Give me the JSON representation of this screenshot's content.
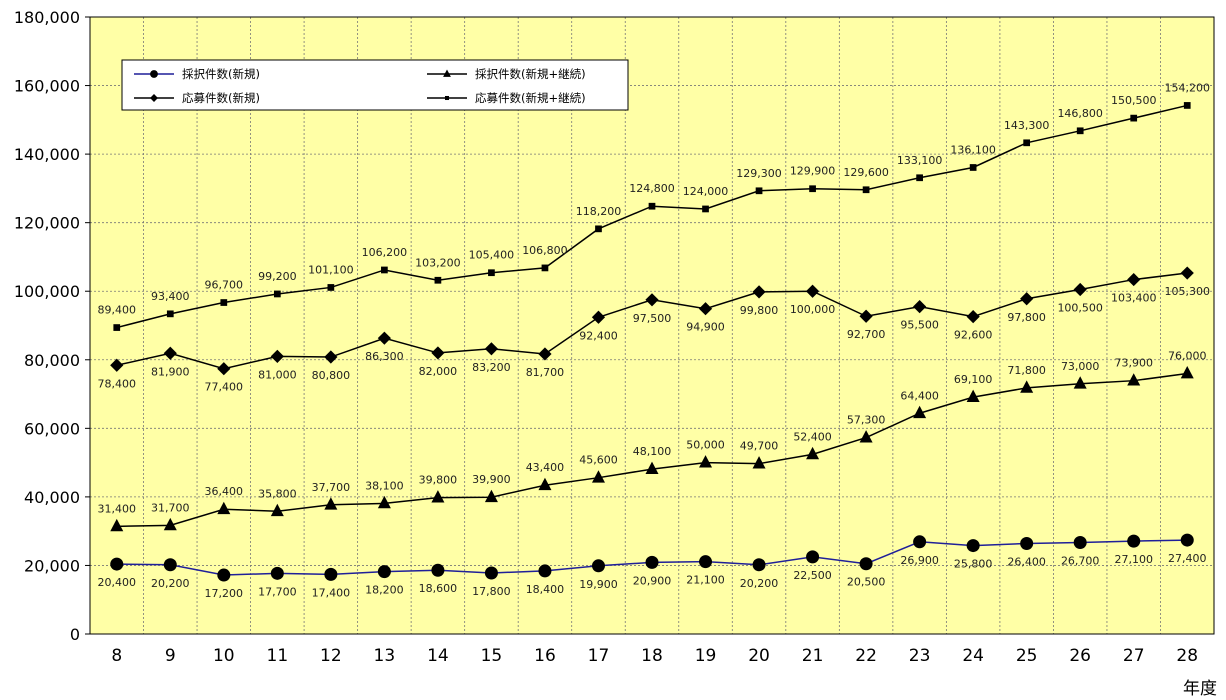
{
  "chart_data": {
    "type": "line",
    "x_unit_label": "年度",
    "categories": [
      "8",
      "9",
      "10",
      "11",
      "12",
      "13",
      "14",
      "15",
      "16",
      "17",
      "18",
      "19",
      "20",
      "21",
      "22",
      "23",
      "24",
      "25",
      "26",
      "27",
      "28"
    ],
    "ylim": [
      0,
      180000
    ],
    "y_ticks": [
      0,
      20000,
      40000,
      60000,
      80000,
      100000,
      120000,
      140000,
      160000,
      180000
    ],
    "y_tick_labels": [
      "0",
      "20,000",
      "40,000",
      "60,000",
      "80,000",
      "100,000",
      "120,000",
      "140,000",
      "160,000",
      "180,000"
    ],
    "grid": true,
    "plot_background": "#FFFFA6",
    "series": [
      {
        "name": "採択件数(新規)",
        "marker": "circle",
        "line_color": "#1f1f99",
        "label_position": "below",
        "values": [
          20400,
          20200,
          17200,
          17700,
          17400,
          18200,
          18600,
          17800,
          18400,
          19900,
          20900,
          21100,
          20200,
          22500,
          20500,
          26900,
          25800,
          26400,
          26700,
          27100,
          27400
        ],
        "labels": [
          "20,400",
          "20,200",
          "17,200",
          "17,700",
          "17,400",
          "18,200",
          "18,600",
          "17,800",
          "18,400",
          "19,900",
          "20,900",
          "21,100",
          "20,200",
          "22,500",
          "20,500",
          "26,900",
          "25,800",
          "26,400",
          "26,700",
          "27,100",
          "27,400"
        ]
      },
      {
        "name": "採択件数(新規+継続)",
        "marker": "triangle",
        "line_color": "#000000",
        "label_position": "above",
        "values": [
          31400,
          31700,
          36400,
          35800,
          37700,
          38100,
          39800,
          39900,
          43400,
          45600,
          48100,
          50000,
          49700,
          52400,
          57300,
          64400,
          69100,
          71800,
          73000,
          73900,
          76000
        ],
        "labels": [
          "31,400",
          "31,700",
          "36,400",
          "35,800",
          "37,700",
          "38,100",
          "39,800",
          "39,900",
          "43,400",
          "45,600",
          "48,100",
          "50,000",
          "49,700",
          "52,400",
          "57,300",
          "64,400",
          "69,100",
          "71,800",
          "73,000",
          "73,900",
          "76,000"
        ]
      },
      {
        "name": "応募件数(新規)",
        "marker": "diamond",
        "line_color": "#000000",
        "label_position": "below",
        "values": [
          78400,
          81900,
          77400,
          81000,
          80800,
          86300,
          82000,
          83200,
          81700,
          92400,
          97500,
          94900,
          99800,
          100000,
          92700,
          95500,
          92600,
          97800,
          100500,
          103400,
          105300
        ],
        "labels": [
          "78,400",
          "81,900",
          "77,400",
          "81,000",
          "80,800",
          "86,300",
          "82,000",
          "83,200",
          "81,700",
          "92,400",
          "97,500",
          "94,900",
          "99,800",
          "100,000",
          "92,700",
          "95,500",
          "92,600",
          "97,800",
          "100,500",
          "103,400",
          "105,300"
        ]
      },
      {
        "name": "応募件数(新規+継続)",
        "marker": "square",
        "line_color": "#000000",
        "label_position": "above",
        "values": [
          89400,
          93400,
          96700,
          99200,
          101100,
          106200,
          103200,
          105400,
          106800,
          118200,
          124800,
          124000,
          129300,
          129900,
          129600,
          133100,
          136100,
          143300,
          146800,
          150500,
          154200
        ],
        "labels": [
          "89,400",
          "93,400",
          "96,700",
          "99,200",
          "101,100",
          "106,200",
          "103,200",
          "105,400",
          "106,800",
          "118,200",
          "124,800",
          "124,000",
          "129,300",
          "129,900",
          "129,600",
          "133,100",
          "136,100",
          "143,300",
          "146,800",
          "150,500",
          "154,200"
        ]
      }
    ],
    "legend": {
      "placement": "top-left",
      "columns": 2
    }
  }
}
